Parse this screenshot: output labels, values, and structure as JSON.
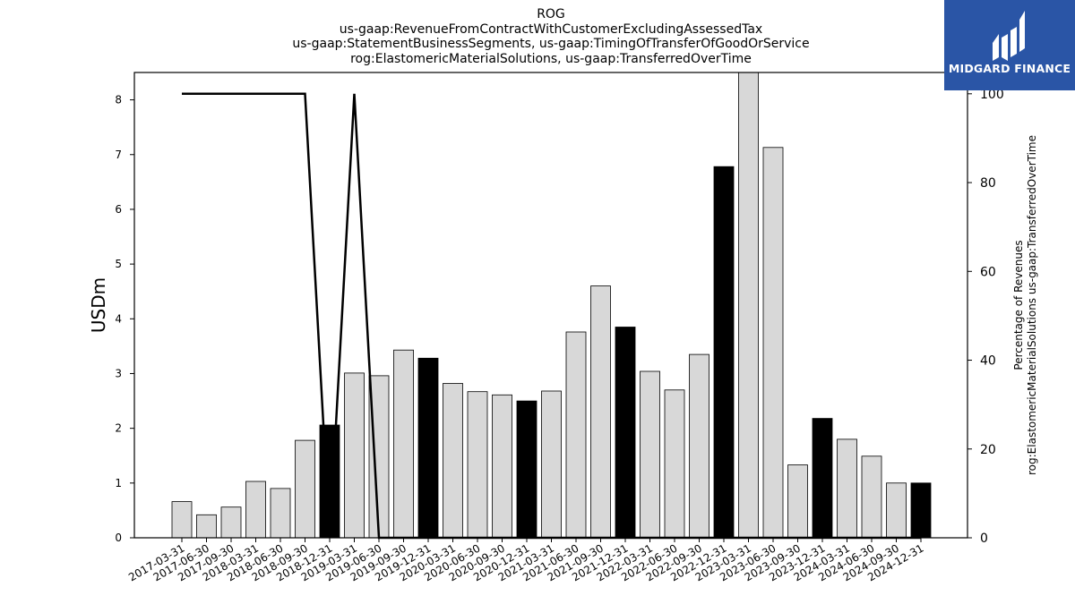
{
  "brand": {
    "name": "MIDGARD FINANCE",
    "color": "#2a55a6"
  },
  "chart_data": {
    "type": "bar",
    "title_lines": [
      "ROG",
      "us-gaap:RevenueFromContractWithCustomerExcludingAssessedTax",
      "us-gaap:StatementBusinessSegments, us-gaap:TimingOfTransferOfGoodOrService",
      "rog:ElastomericMaterialSolutions, us-gaap:TransferredOverTime"
    ],
    "ylabel": "USDm",
    "y2label_lines": [
      "Percentage of Revenues",
      "rog:ElastomericMaterialSolutions us-gaap:TransferredOverTime"
    ],
    "categories": [
      "2017-03-31",
      "2017-06-30",
      "2017-09-30",
      "2018-03-31",
      "2018-06-30",
      "2018-09-30",
      "2018-12-31",
      "2019-03-31",
      "2019-06-30",
      "2019-09-30",
      "2019-12-31",
      "2020-03-31",
      "2020-06-30",
      "2020-09-30",
      "2020-12-31",
      "2021-03-31",
      "2021-06-30",
      "2021-09-30",
      "2021-12-31",
      "2022-03-31",
      "2022-06-30",
      "2022-09-30",
      "2022-12-31",
      "2023-03-31",
      "2023-06-30",
      "2023-09-30",
      "2023-12-31",
      "2024-03-31",
      "2024-06-30",
      "2024-09-30",
      "2024-12-31"
    ],
    "values": [
      0.66,
      0.42,
      0.56,
      1.03,
      0.9,
      1.78,
      2.06,
      3.01,
      2.96,
      3.43,
      3.28,
      2.82,
      2.67,
      2.61,
      2.5,
      2.68,
      3.76,
      4.6,
      3.85,
      3.04,
      2.7,
      3.35,
      6.78,
      8.5,
      7.13,
      1.33,
      2.18,
      1.8,
      1.49,
      1.0,
      1.0
    ],
    "highlight": [
      false,
      false,
      false,
      false,
      false,
      false,
      true,
      false,
      false,
      false,
      true,
      false,
      false,
      false,
      true,
      false,
      false,
      false,
      true,
      false,
      false,
      false,
      true,
      false,
      false,
      false,
      true,
      false,
      false,
      false,
      true
    ],
    "bar_colors": {
      "normal": "#d8d8d8",
      "highlight": "#000000",
      "edge": "#000000"
    },
    "line": {
      "name": "Percentage of Revenues",
      "points": [
        {
          "x": "2017-03-31",
          "y": 100
        },
        {
          "x": "2018-09-30",
          "y": 100
        },
        {
          "x": "2018-12-31",
          "y": 0
        },
        {
          "x": "2019-03-31",
          "y": 100
        },
        {
          "x": "2019-06-30",
          "y": 0
        },
        {
          "x": "2024-12-31",
          "y": 0
        }
      ],
      "color": "#000000"
    },
    "ylim": [
      0,
      8.5
    ],
    "yticks": [
      0,
      1,
      2,
      3,
      4,
      5,
      6,
      7,
      8
    ],
    "y2lim": [
      0,
      104.8
    ],
    "y2ticks": [
      0,
      20,
      40,
      60,
      80,
      100
    ],
    "grid": false,
    "legend": "none"
  }
}
